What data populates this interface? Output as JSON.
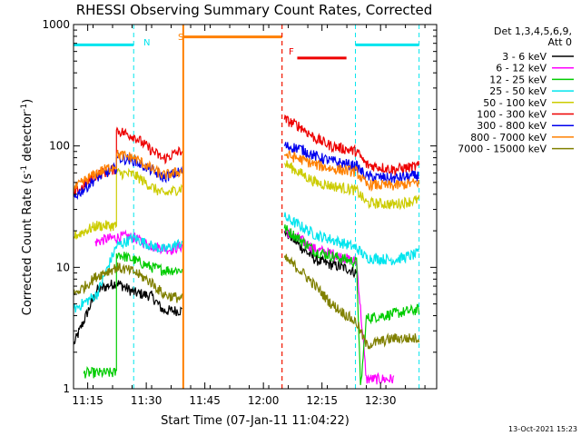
{
  "chart_data": {
    "type": "line",
    "title": "RHESSI Observing Summary Count Rates, Corrected",
    "xlabel": "Start Time (07-Jan-11 11:04:22)",
    "ylabel": "Corrected Count Rate (s⁻¹ detector⁻¹)",
    "ylabel_parts": [
      "Corrected Count Rate (s",
      "-1",
      " detector",
      "-1",
      ")"
    ],
    "yscale": "log",
    "ylim": [
      1,
      1000
    ],
    "xlim": [
      7.0,
      100.0
    ],
    "x_units": "minutes after 11:04:22 (axis labels show clock time)",
    "yticks": [
      1,
      10,
      100,
      1000
    ],
    "ytick_labels": [
      "1",
      "10",
      "100",
      "1000"
    ],
    "xticks": [
      10.63,
      25.63,
      40.63,
      55.63,
      70.63,
      85.63
    ],
    "xtick_labels": [
      "11:15",
      "11:30",
      "11:45",
      "12:00",
      "12:15",
      "12:30"
    ],
    "legend_title": [
      "Det 1,3,4,5,6,9,",
      "Att 0"
    ],
    "legend_placement": "right",
    "timestamp": "13-Oct-2021 15:23",
    "flags": [
      {
        "label": "N",
        "color": "#00e5ee",
        "segments": [
          [
            7.0,
            22.4
          ],
          [
            79.2,
            95.5
          ]
        ],
        "y": 680,
        "markers": [
          22.4,
          79.2,
          95.5
        ]
      },
      {
        "label": "S",
        "color": "#ff8000",
        "segments": [
          [
            35.1,
            60.4
          ]
        ],
        "y": 790,
        "markers": [
          35.1,
          60.4
        ]
      },
      {
        "label": "F",
        "color": "#ee0000",
        "segments": [
          [
            64.3,
            76.9
          ]
        ],
        "y": 530,
        "markers": [
          60.4
        ]
      }
    ],
    "gaps": [
      [
        35.1,
        60.4
      ]
    ],
    "series": [
      {
        "name": "3 - 6 keV",
        "color": "#000000",
        "points": [
          [
            7,
            2.3
          ],
          [
            13,
            6.5
          ],
          [
            18,
            7.5
          ],
          [
            22.5,
            6.2
          ],
          [
            27,
            5.8
          ],
          [
            30,
            4.4
          ],
          [
            34.8,
            4.4
          ],
          [
            61,
            20
          ],
          [
            65,
            15
          ],
          [
            69,
            11.5
          ],
          [
            73,
            10.5
          ],
          [
            77,
            9.8
          ],
          [
            79.5,
            9.0
          ]
        ]
      },
      {
        "name": "6 - 12 keV",
        "color": "#ff00ff",
        "points": [
          [
            12.5,
            16
          ],
          [
            15,
            17
          ],
          [
            20,
            18
          ],
          [
            22.5,
            17.5
          ],
          [
            27,
            15
          ],
          [
            32,
            14
          ],
          [
            34.8,
            15
          ],
          [
            61,
            20
          ],
          [
            65,
            17
          ],
          [
            69,
            14
          ],
          [
            73,
            13
          ],
          [
            79.5,
            11
          ],
          [
            82,
            1.2
          ],
          [
            89,
            1.2
          ]
        ]
      },
      {
        "name": "12 - 25 keV",
        "color": "#00cc00",
        "points": [
          [
            9.5,
            1.35
          ],
          [
            18,
            1.35
          ],
          [
            18,
            13
          ],
          [
            22.5,
            11.5
          ],
          [
            27,
            10
          ],
          [
            30,
            9.5
          ],
          [
            34.8,
            9.5
          ],
          [
            61,
            21
          ],
          [
            65,
            17
          ],
          [
            69,
            13.5
          ],
          [
            73,
            12.5
          ],
          [
            79.5,
            11
          ],
          [
            80.5,
            1.0
          ],
          [
            82,
            3.8
          ],
          [
            95.5,
            4.5
          ]
        ]
      },
      {
        "name": "25 - 50 keV",
        "color": "#00e5ee",
        "points": [
          [
            7,
            4.5
          ],
          [
            13,
            6
          ],
          [
            18,
            15
          ],
          [
            22.5,
            17.5
          ],
          [
            27,
            15
          ],
          [
            30,
            14
          ],
          [
            34.8,
            16
          ],
          [
            61,
            26
          ],
          [
            65,
            22
          ],
          [
            69,
            18.5
          ],
          [
            73,
            17
          ],
          [
            79.5,
            14.5
          ],
          [
            82,
            12
          ],
          [
            89,
            11.5
          ],
          [
            95.5,
            13
          ]
        ]
      },
      {
        "name": "50 - 100 keV",
        "color": "#cccc00",
        "points": [
          [
            7,
            18
          ],
          [
            10,
            20
          ],
          [
            13,
            22
          ],
          [
            18,
            22
          ],
          [
            18,
            60
          ],
          [
            22.5,
            58
          ],
          [
            27,
            46
          ],
          [
            30,
            40
          ],
          [
            34.8,
            45
          ],
          [
            61,
            72
          ],
          [
            65,
            60
          ],
          [
            69,
            50
          ],
          [
            73,
            47
          ],
          [
            79.5,
            43
          ],
          [
            82,
            34
          ],
          [
            89,
            33
          ],
          [
            95.5,
            36
          ]
        ]
      },
      {
        "name": "100 - 300 keV",
        "color": "#ee0000",
        "points": [
          [
            7,
            40
          ],
          [
            10,
            48
          ],
          [
            13,
            58
          ],
          [
            18,
            65
          ],
          [
            18,
            135
          ],
          [
            22.5,
            120
          ],
          [
            27,
            92
          ],
          [
            30,
            78
          ],
          [
            34.8,
            92
          ],
          [
            61,
            165
          ],
          [
            65,
            145
          ],
          [
            69,
            115
          ],
          [
            73,
            100
          ],
          [
            79.5,
            90
          ],
          [
            82,
            70
          ],
          [
            89,
            64
          ],
          [
            95.5,
            68
          ]
        ]
      },
      {
        "name": "300 - 800 keV",
        "color": "#0000ee",
        "points": [
          [
            7,
            38
          ],
          [
            10,
            45
          ],
          [
            13,
            55
          ],
          [
            18,
            66
          ],
          [
            18,
            80
          ],
          [
            22.5,
            76
          ],
          [
            27,
            63
          ],
          [
            30,
            55
          ],
          [
            34.8,
            62
          ],
          [
            61,
            100
          ],
          [
            65,
            95
          ],
          [
            69,
            82
          ],
          [
            73,
            75
          ],
          [
            79.5,
            68
          ],
          [
            82,
            56
          ],
          [
            89,
            54
          ],
          [
            95.5,
            57
          ]
        ]
      },
      {
        "name": "800 - 7000 keV",
        "color": "#ff8000",
        "points": [
          [
            7,
            44
          ],
          [
            10,
            52
          ],
          [
            13,
            60
          ],
          [
            18,
            70
          ],
          [
            18,
            85
          ],
          [
            22.5,
            80
          ],
          [
            27,
            65
          ],
          [
            30,
            57
          ],
          [
            34.8,
            62
          ],
          [
            61,
            85
          ],
          [
            65,
            78
          ],
          [
            69,
            70
          ],
          [
            73,
            65
          ],
          [
            79.5,
            61
          ],
          [
            82,
            48
          ],
          [
            89,
            47
          ],
          [
            95.5,
            50
          ]
        ]
      },
      {
        "name": "7000 - 15000 keV",
        "color": "#808000",
        "points": [
          [
            7,
            6
          ],
          [
            10,
            7
          ],
          [
            13,
            8.5
          ],
          [
            18,
            10
          ],
          [
            22.5,
            9.2
          ],
          [
            27,
            7.5
          ],
          [
            30,
            6.0
          ],
          [
            34.8,
            5.5
          ],
          [
            61,
            12
          ],
          [
            65,
            9.5
          ],
          [
            69,
            7.0
          ],
          [
            73,
            5.0
          ],
          [
            79.5,
            3.5
          ],
          [
            82,
            2.3
          ],
          [
            89,
            2.6
          ],
          [
            95.5,
            2.6
          ]
        ]
      }
    ]
  }
}
